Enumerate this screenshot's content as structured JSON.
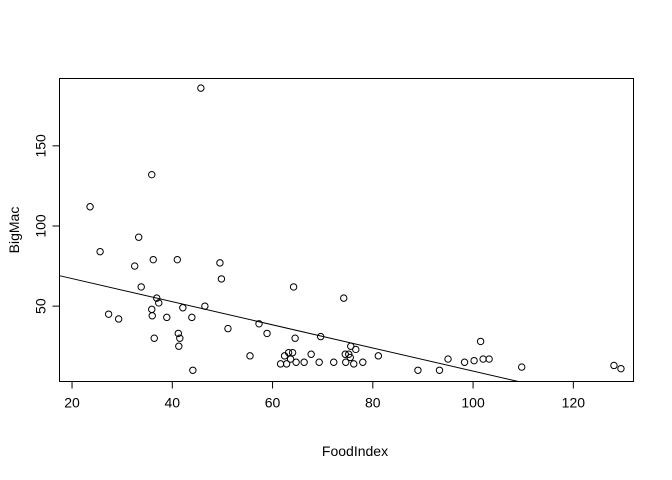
{
  "chart_data": {
    "type": "scatter",
    "title": "",
    "xlabel": "FoodIndex",
    "ylabel": "BigMac",
    "xlim": [
      17.5,
      132
    ],
    "ylim": [
      3,
      192
    ],
    "x_ticks": [
      20,
      40,
      60,
      80,
      100,
      120
    ],
    "y_ticks": [
      50,
      100,
      150
    ],
    "grid": false,
    "regression_line": {
      "x": [
        17.5,
        109
      ],
      "y": [
        69,
        3
      ]
    },
    "points": [
      {
        "x": 23.6,
        "y": 112
      },
      {
        "x": 25.6,
        "y": 84
      },
      {
        "x": 27.3,
        "y": 45
      },
      {
        "x": 29.3,
        "y": 42
      },
      {
        "x": 32.5,
        "y": 75
      },
      {
        "x": 33.3,
        "y": 93
      },
      {
        "x": 33.8,
        "y": 62
      },
      {
        "x": 35.9,
        "y": 132
      },
      {
        "x": 35.9,
        "y": 48
      },
      {
        "x": 36,
        "y": 44
      },
      {
        "x": 36.2,
        "y": 79
      },
      {
        "x": 36.4,
        "y": 30
      },
      {
        "x": 36.9,
        "y": 55
      },
      {
        "x": 37.3,
        "y": 52
      },
      {
        "x": 38.9,
        "y": 43
      },
      {
        "x": 41,
        "y": 79
      },
      {
        "x": 41.2,
        "y": 33
      },
      {
        "x": 41.3,
        "y": 25
      },
      {
        "x": 41.5,
        "y": 30
      },
      {
        "x": 42.1,
        "y": 49
      },
      {
        "x": 43.9,
        "y": 43
      },
      {
        "x": 44.1,
        "y": 10
      },
      {
        "x": 45.7,
        "y": 186
      },
      {
        "x": 46.5,
        "y": 50
      },
      {
        "x": 49.5,
        "y": 77
      },
      {
        "x": 49.8,
        "y": 67
      },
      {
        "x": 51.1,
        "y": 36
      },
      {
        "x": 55.5,
        "y": 19
      },
      {
        "x": 57.3,
        "y": 39
      },
      {
        "x": 58.9,
        "y": 33
      },
      {
        "x": 61.6,
        "y": 14
      },
      {
        "x": 62.4,
        "y": 19
      },
      {
        "x": 62.8,
        "y": 14
      },
      {
        "x": 63.2,
        "y": 21
      },
      {
        "x": 63.6,
        "y": 17
      },
      {
        "x": 64,
        "y": 21
      },
      {
        "x": 64.2,
        "y": 62
      },
      {
        "x": 64.5,
        "y": 30
      },
      {
        "x": 64.7,
        "y": 15
      },
      {
        "x": 66.3,
        "y": 15
      },
      {
        "x": 67.7,
        "y": 20
      },
      {
        "x": 69.3,
        "y": 15
      },
      {
        "x": 69.6,
        "y": 31
      },
      {
        "x": 72.2,
        "y": 15
      },
      {
        "x": 74.2,
        "y": 55
      },
      {
        "x": 74.5,
        "y": 20
      },
      {
        "x": 74.6,
        "y": 15
      },
      {
        "x": 75.2,
        "y": 20
      },
      {
        "x": 75.5,
        "y": 18
      },
      {
        "x": 75.6,
        "y": 25
      },
      {
        "x": 76.2,
        "y": 14
      },
      {
        "x": 76.6,
        "y": 23
      },
      {
        "x": 78,
        "y": 15
      },
      {
        "x": 81.1,
        "y": 19
      },
      {
        "x": 89,
        "y": 10
      },
      {
        "x": 93.3,
        "y": 10
      },
      {
        "x": 95,
        "y": 17
      },
      {
        "x": 98.3,
        "y": 15
      },
      {
        "x": 100.2,
        "y": 16
      },
      {
        "x": 101.5,
        "y": 28
      },
      {
        "x": 102,
        "y": 17
      },
      {
        "x": 103.2,
        "y": 17
      },
      {
        "x": 109.7,
        "y": 12
      },
      {
        "x": 128.1,
        "y": 13
      },
      {
        "x": 129.5,
        "y": 11
      }
    ]
  }
}
